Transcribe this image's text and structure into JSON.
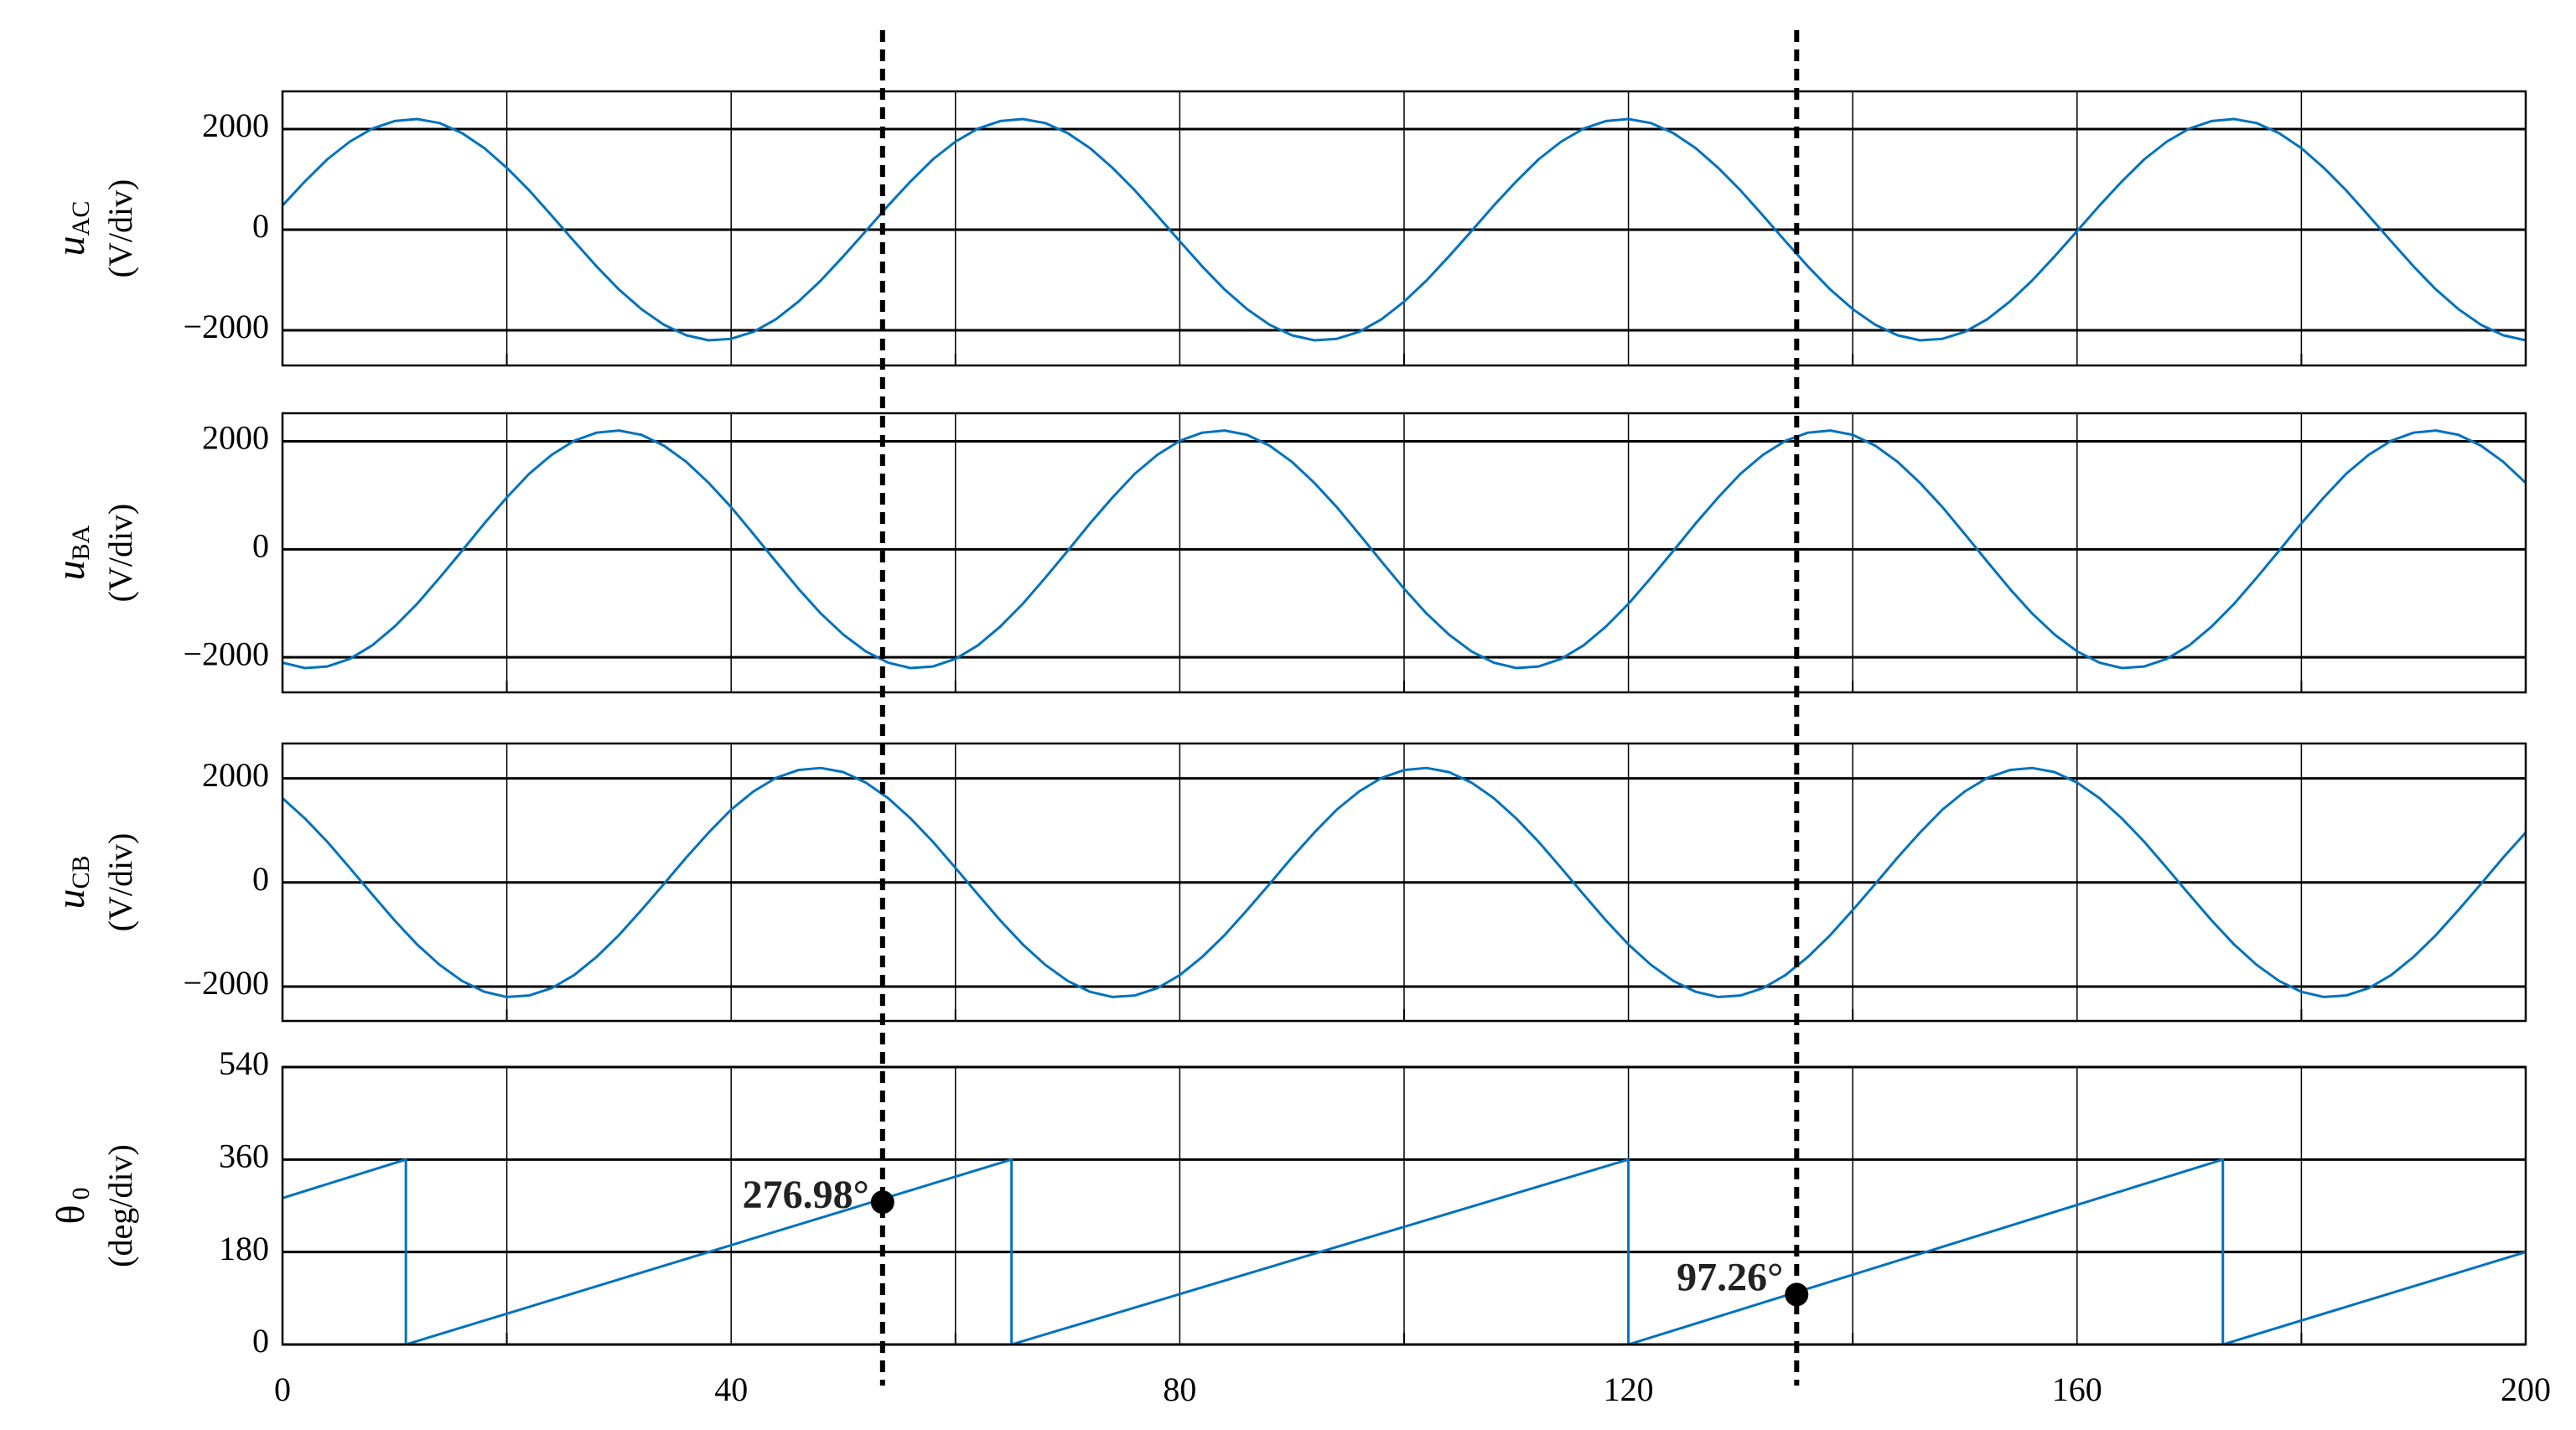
{
  "chart_data": [
    {
      "type": "line",
      "ylabel": "u",
      "ylabel_sub": "AC",
      "yunit": "(V/div)",
      "color": "#0072bd",
      "xlim": [
        0,
        200
      ],
      "xticks": [
        0,
        40,
        80,
        120,
        160,
        200
      ],
      "xminor": [
        20,
        60,
        100,
        140,
        180
      ],
      "xtick_labels": false,
      "ylim": [
        -2700,
        2750
      ],
      "yticks": [
        {
          "value": -2000,
          "label": "−2000"
        },
        0,
        2000
      ],
      "grid": true,
      "x": [
        0,
        2,
        4,
        6,
        8,
        10,
        12,
        14,
        16,
        18,
        20,
        22,
        24,
        26,
        28,
        30,
        32,
        34,
        36,
        38,
        40,
        42,
        44,
        46,
        48,
        50,
        52,
        54,
        56,
        58,
        60,
        62,
        64,
        66,
        68,
        70,
        72,
        74,
        76,
        78,
        80,
        82,
        84,
        86,
        88,
        90,
        92,
        94,
        96,
        98,
        100,
        102,
        104,
        106,
        108,
        110,
        112,
        114,
        116,
        118,
        120,
        122,
        124,
        126,
        128,
        130,
        132,
        134,
        136,
        138,
        140,
        142,
        144,
        146,
        148,
        150,
        152,
        154,
        156,
        158,
        160,
        162,
        164,
        166,
        168,
        170,
        172,
        174,
        176,
        178,
        180,
        182,
        184,
        186,
        188,
        190,
        192,
        194,
        196,
        198,
        200
      ],
      "values": [
        480,
        960,
        1400,
        1750,
        2010,
        2160,
        2200,
        2120,
        1920,
        1620,
        1230,
        780,
        280,
        -230,
        -730,
        -1190,
        -1580,
        -1890,
        -2100,
        -2200,
        -2170,
        -2030,
        -1780,
        -1430,
        -1010,
        -530,
        -30,
        480,
        960,
        1400,
        1750,
        2010,
        2160,
        2200,
        2120,
        1920,
        1620,
        1230,
        780,
        280,
        -230,
        -730,
        -1190,
        -1580,
        -1890,
        -2100,
        -2200,
        -2170,
        -2030,
        -1780,
        -1430,
        -1010,
        -530,
        -30,
        480,
        960,
        1400,
        1750,
        2010,
        2160,
        2200,
        2120,
        1920,
        1620,
        1230,
        780,
        280,
        -230,
        -730,
        -1190,
        -1580,
        -1890,
        -2100,
        -2200,
        -2170,
        -2030,
        -1780,
        -1430,
        -1010,
        -530,
        -30,
        480,
        960,
        1400,
        1750,
        2010,
        2160,
        2200,
        2120,
        1920,
        1620,
        1230,
        780,
        280,
        -230,
        -730,
        -1190,
        -1580,
        -1890,
        -2100,
        -2200
      ]
    },
    {
      "type": "line",
      "ylabel": "u",
      "ylabel_sub": "BA",
      "yunit": "(V/div)",
      "color": "#0072bd",
      "xlim": [
        0,
        200
      ],
      "xticks": [
        0,
        40,
        80,
        120,
        160,
        200
      ],
      "xminor": [
        20,
        60,
        100,
        140,
        180
      ],
      "xtick_labels": false,
      "ylim": [
        -2650,
        2520
      ],
      "yticks": [
        {
          "value": -2000,
          "label": "−2000"
        },
        0,
        2000
      ],
      "grid": true,
      "x": [
        0,
        2,
        4,
        6,
        8,
        10,
        12,
        14,
        16,
        18,
        20,
        22,
        24,
        26,
        28,
        30,
        32,
        34,
        36,
        38,
        40,
        42,
        44,
        46,
        48,
        50,
        52,
        54,
        56,
        58,
        60,
        62,
        64,
        66,
        68,
        70,
        72,
        74,
        76,
        78,
        80,
        82,
        84,
        86,
        88,
        90,
        92,
        94,
        96,
        98,
        100,
        102,
        104,
        106,
        108,
        110,
        112,
        114,
        116,
        118,
        120,
        122,
        124,
        126,
        128,
        130,
        132,
        134,
        136,
        138,
        140,
        142,
        144,
        146,
        148,
        150,
        152,
        154,
        156,
        158,
        160,
        162,
        164,
        166,
        168,
        170,
        172,
        174,
        176,
        178,
        180,
        182,
        184,
        186,
        188,
        190,
        192,
        194,
        196,
        198,
        200
      ],
      "values": [
        -2100,
        -2200,
        -2170,
        -2030,
        -1780,
        -1430,
        -1010,
        -530,
        -30,
        480,
        960,
        1400,
        1750,
        2010,
        2160,
        2200,
        2120,
        1920,
        1620,
        1230,
        780,
        280,
        -230,
        -730,
        -1190,
        -1580,
        -1890,
        -2100,
        -2200,
        -2170,
        -2030,
        -1780,
        -1430,
        -1010,
        -530,
        -30,
        480,
        960,
        1400,
        1750,
        2010,
        2160,
        2200,
        2120,
        1920,
        1620,
        1230,
        780,
        280,
        -230,
        -730,
        -1190,
        -1580,
        -1890,
        -2100,
        -2200,
        -2170,
        -2030,
        -1780,
        -1430,
        -1010,
        -530,
        -30,
        480,
        960,
        1400,
        1750,
        2010,
        2160,
        2200,
        2120,
        1920,
        1620,
        1230,
        780,
        280,
        -230,
        -730,
        -1190,
        -1580,
        -1890,
        -2100,
        -2200,
        -2170,
        -2030,
        -1780,
        -1430,
        -1010,
        -530,
        -30,
        480,
        960,
        1400,
        1750,
        2010,
        2160,
        2200,
        2120,
        1920,
        1620,
        1230
      ]
    },
    {
      "type": "line",
      "ylabel": "u",
      "ylabel_sub": "CB",
      "yunit": "(V/div)",
      "color": "#0072bd",
      "xlim": [
        0,
        200
      ],
      "xticks": [
        0,
        40,
        80,
        120,
        160,
        200
      ],
      "xminor": [
        20,
        60,
        100,
        140,
        180
      ],
      "xtick_labels": false,
      "ylim": [
        -2660,
        2670
      ],
      "yticks": [
        {
          "value": -2000,
          "label": "−2000"
        },
        0,
        2000
      ],
      "grid": true,
      "x": [
        0,
        2,
        4,
        6,
        8,
        10,
        12,
        14,
        16,
        18,
        20,
        22,
        24,
        26,
        28,
        30,
        32,
        34,
        36,
        38,
        40,
        42,
        44,
        46,
        48,
        50,
        52,
        54,
        56,
        58,
        60,
        62,
        64,
        66,
        68,
        70,
        72,
        74,
        76,
        78,
        80,
        82,
        84,
        86,
        88,
        90,
        92,
        94,
        96,
        98,
        100,
        102,
        104,
        106,
        108,
        110,
        112,
        114,
        116,
        118,
        120,
        122,
        124,
        126,
        128,
        130,
        132,
        134,
        136,
        138,
        140,
        142,
        144,
        146,
        148,
        150,
        152,
        154,
        156,
        158,
        160,
        162,
        164,
        166,
        168,
        170,
        172,
        174,
        176,
        178,
        180,
        182,
        184,
        186,
        188,
        190,
        192,
        194,
        196,
        198,
        200
      ],
      "values": [
        1620,
        1230,
        780,
        280,
        -230,
        -730,
        -1190,
        -1580,
        -1890,
        -2100,
        -2200,
        -2170,
        -2030,
        -1780,
        -1430,
        -1010,
        -530,
        -30,
        480,
        960,
        1400,
        1750,
        2010,
        2160,
        2200,
        2120,
        1920,
        1620,
        1230,
        780,
        280,
        -230,
        -730,
        -1190,
        -1580,
        -1890,
        -2100,
        -2200,
        -2170,
        -2030,
        -1780,
        -1430,
        -1010,
        -530,
        -30,
        480,
        960,
        1400,
        1750,
        2010,
        2160,
        2200,
        2120,
        1920,
        1620,
        1230,
        780,
        280,
        -230,
        -730,
        -1190,
        -1580,
        -1890,
        -2100,
        -2200,
        -2170,
        -2030,
        -1780,
        -1430,
        -1010,
        -530,
        -30,
        480,
        960,
        1400,
        1750,
        2010,
        2160,
        2200,
        2120,
        1920,
        1620,
        1230,
        780,
        280,
        -230,
        -730,
        -1190,
        -1580,
        -1890,
        -2100,
        -2200,
        -2170,
        -2030,
        -1780,
        -1430,
        -1010,
        -530,
        -30,
        480,
        960
      ]
    },
    {
      "type": "line",
      "ylabel": "θ",
      "ylabel_sub": "0",
      "yunit": "(deg/div)",
      "color": "#0072bd",
      "xlim": [
        0,
        200
      ],
      "xticks": [
        0,
        40,
        80,
        120,
        160,
        200
      ],
      "xminor": [
        20,
        60,
        100,
        140,
        180
      ],
      "xtick_labels": true,
      "ylim": [
        0,
        540
      ],
      "yticks": [
        0,
        180,
        360,
        540
      ],
      "grid": true,
      "x": [
        0,
        11,
        11,
        65,
        65,
        120,
        120,
        173,
        173,
        200
      ],
      "values": [
        285,
        360,
        0,
        360,
        0,
        360,
        0,
        360,
        0,
        180
      ],
      "annotations": [
        {
          "x": 53.5,
          "y": 276.98,
          "label": "276.98°"
        },
        {
          "x": 135,
          "y": 97.26,
          "label": "97.26°"
        }
      ]
    }
  ]
}
